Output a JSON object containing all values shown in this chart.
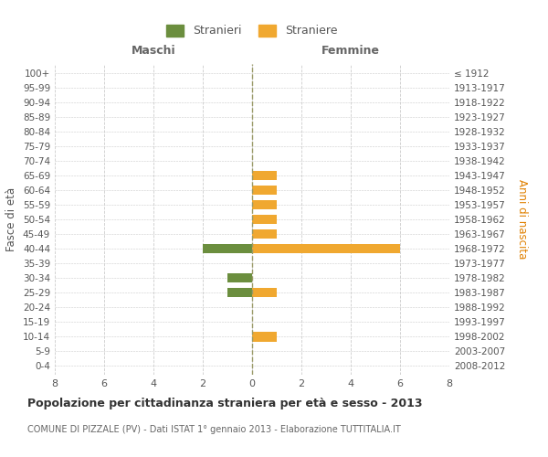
{
  "age_groups": [
    "0-4",
    "5-9",
    "10-14",
    "15-19",
    "20-24",
    "25-29",
    "30-34",
    "35-39",
    "40-44",
    "45-49",
    "50-54",
    "55-59",
    "60-64",
    "65-69",
    "70-74",
    "75-79",
    "80-84",
    "85-89",
    "90-94",
    "95-99",
    "100+"
  ],
  "birth_years": [
    "2008-2012",
    "2003-2007",
    "1998-2002",
    "1993-1997",
    "1988-1992",
    "1983-1987",
    "1978-1982",
    "1973-1977",
    "1968-1972",
    "1963-1967",
    "1958-1962",
    "1953-1957",
    "1948-1952",
    "1943-1947",
    "1938-1942",
    "1933-1937",
    "1928-1932",
    "1923-1927",
    "1918-1922",
    "1913-1917",
    "≤ 1912"
  ],
  "maschi": [
    0,
    0,
    0,
    0,
    0,
    1,
    1,
    0,
    2,
    0,
    0,
    0,
    0,
    0,
    0,
    0,
    0,
    0,
    0,
    0,
    0
  ],
  "femmine": [
    0,
    0,
    1,
    0,
    0,
    1,
    0,
    0,
    6,
    1,
    1,
    1,
    1,
    1,
    0,
    0,
    0,
    0,
    0,
    0,
    0
  ],
  "male_color": "#6b8e3e",
  "female_color": "#f0a830",
  "background_color": "#ffffff",
  "grid_color": "#cccccc",
  "title": "Popolazione per cittadinanza straniera per età e sesso - 2013",
  "subtitle": "COMUNE DI PIZZALE (PV) - Dati ISTAT 1° gennaio 2013 - Elaborazione TUTTITALIA.IT",
  "ylabel_left": "Fasce di età",
  "ylabel_right": "Anni di nascita",
  "xlabel_maschi": "Maschi",
  "xlabel_femmine": "Femmine",
  "legend_maschi": "Stranieri",
  "legend_femmine": "Straniere",
  "xlim": 8
}
